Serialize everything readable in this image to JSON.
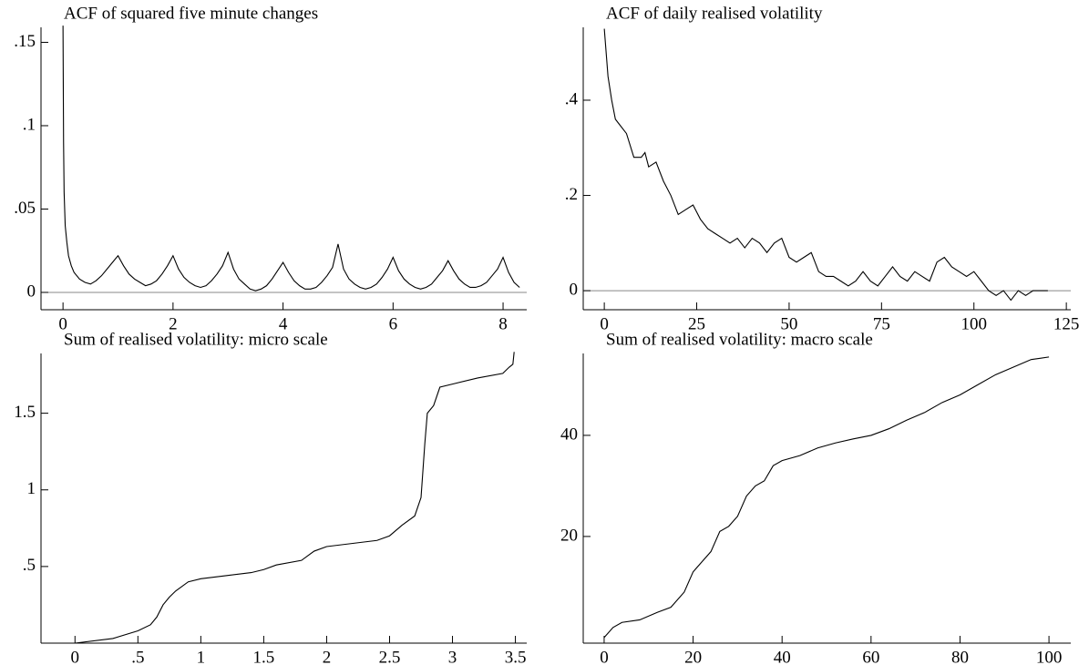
{
  "chart_data": [
    {
      "type": "line",
      "title": "ACF of squared five minute changes",
      "color": "#000000",
      "zero_line": true,
      "x": [
        0,
        0.01,
        0.02,
        0.04,
        0.07,
        0.1,
        0.15,
        0.2,
        0.3,
        0.4,
        0.5,
        0.6,
        0.7,
        0.8,
        0.9,
        1.0,
        1.1,
        1.2,
        1.3,
        1.4,
        1.5,
        1.6,
        1.7,
        1.8,
        1.9,
        2.0,
        2.1,
        2.2,
        2.3,
        2.4,
        2.5,
        2.6,
        2.7,
        2.8,
        2.9,
        3.0,
        3.1,
        3.2,
        3.3,
        3.4,
        3.5,
        3.6,
        3.7,
        3.8,
        3.9,
        4.0,
        4.1,
        4.2,
        4.3,
        4.4,
        4.5,
        4.6,
        4.7,
        4.8,
        4.9,
        5.0,
        5.1,
        5.2,
        5.3,
        5.4,
        5.5,
        5.6,
        5.7,
        5.8,
        5.9,
        6.0,
        6.1,
        6.2,
        6.3,
        6.4,
        6.5,
        6.6,
        6.7,
        6.8,
        6.9,
        7.0,
        7.1,
        7.2,
        7.3,
        7.4,
        7.5,
        7.6,
        7.7,
        7.8,
        7.9,
        8.0,
        8.1,
        8.2,
        8.3
      ],
      "values": [
        0.16,
        0.09,
        0.06,
        0.04,
        0.03,
        0.022,
        0.016,
        0.012,
        0.008,
        0.006,
        0.005,
        0.007,
        0.01,
        0.014,
        0.018,
        0.022,
        0.016,
        0.011,
        0.008,
        0.006,
        0.004,
        0.005,
        0.007,
        0.011,
        0.016,
        0.022,
        0.014,
        0.009,
        0.006,
        0.004,
        0.003,
        0.004,
        0.007,
        0.011,
        0.016,
        0.024,
        0.014,
        0.008,
        0.005,
        0.002,
        0.001,
        0.002,
        0.004,
        0.008,
        0.013,
        0.018,
        0.012,
        0.007,
        0.004,
        0.002,
        0.002,
        0.003,
        0.006,
        0.01,
        0.015,
        0.029,
        0.014,
        0.008,
        0.005,
        0.003,
        0.002,
        0.003,
        0.005,
        0.009,
        0.014,
        0.021,
        0.013,
        0.008,
        0.005,
        0.003,
        0.002,
        0.003,
        0.005,
        0.009,
        0.013,
        0.019,
        0.013,
        0.008,
        0.005,
        0.003,
        0.003,
        0.004,
        0.006,
        0.01,
        0.014,
        0.021,
        0.012,
        0.006,
        0.003
      ],
      "xlim": [
        -0.4,
        8.43
      ],
      "ylim": [
        -0.0104,
        0.159
      ],
      "xticks": [
        0,
        2,
        4,
        6,
        8
      ],
      "yticks": [
        0,
        {
          "value": 0.05,
          "label": ".05"
        },
        {
          "value": 0.1,
          "label": ".1"
        },
        {
          "value": 0.15,
          "label": ".15"
        }
      ]
    },
    {
      "type": "line",
      "title": "ACF of daily realised volatility",
      "color": "#000000",
      "zero_line": true,
      "x": [
        0,
        1,
        2,
        3,
        4,
        6,
        8,
        10,
        11,
        12,
        14,
        16,
        18,
        20,
        22,
        24,
        26,
        28,
        30,
        32,
        34,
        36,
        38,
        40,
        42,
        44,
        46,
        48,
        50,
        52,
        54,
        56,
        58,
        60,
        62,
        64,
        66,
        68,
        70,
        72,
        74,
        76,
        78,
        80,
        82,
        84,
        86,
        88,
        90,
        92,
        94,
        96,
        98,
        100,
        102,
        104,
        106,
        108,
        110,
        112,
        114,
        116,
        118,
        120
      ],
      "values": [
        0.55,
        0.45,
        0.4,
        0.36,
        0.35,
        0.33,
        0.28,
        0.28,
        0.29,
        0.26,
        0.27,
        0.23,
        0.2,
        0.16,
        0.17,
        0.18,
        0.15,
        0.13,
        0.12,
        0.11,
        0.1,
        0.11,
        0.09,
        0.11,
        0.1,
        0.08,
        0.1,
        0.11,
        0.07,
        0.06,
        0.07,
        0.08,
        0.04,
        0.03,
        0.03,
        0.02,
        0.01,
        0.02,
        0.04,
        0.02,
        0.01,
        0.03,
        0.05,
        0.03,
        0.02,
        0.04,
        0.03,
        0.02,
        0.06,
        0.07,
        0.05,
        0.04,
        0.03,
        0.04,
        0.02,
        0.0,
        -0.01,
        0.0,
        -0.02,
        0.0,
        -0.01,
        0.0,
        0.0,
        0.0
      ],
      "xlim": [
        -5.7,
        126.2
      ],
      "ylim": [
        -0.04,
        0.553
      ],
      "xticks": [
        0,
        25,
        50,
        75,
        100,
        125
      ],
      "yticks": [
        0,
        {
          "value": 0.2,
          "label": ".2"
        },
        {
          "value": 0.4,
          "label": ".4"
        }
      ]
    },
    {
      "type": "line",
      "title": "Sum of realised volatility: micro scale",
      "color": "#000000",
      "zero_line": false,
      "x": [
        0,
        0.3,
        0.5,
        0.6,
        0.65,
        0.7,
        0.75,
        0.8,
        0.9,
        1.0,
        1.2,
        1.4,
        1.5,
        1.6,
        1.8,
        1.9,
        2.0,
        2.2,
        2.4,
        2.5,
        2.6,
        2.7,
        2.75,
        2.78,
        2.8,
        2.85,
        2.9,
        3.0,
        3.2,
        3.4,
        3.45,
        3.48,
        3.49
      ],
      "values": [
        0,
        0.03,
        0.08,
        0.12,
        0.17,
        0.25,
        0.3,
        0.34,
        0.4,
        0.42,
        0.44,
        0.46,
        0.48,
        0.51,
        0.54,
        0.6,
        0.63,
        0.65,
        0.67,
        0.7,
        0.77,
        0.83,
        0.95,
        1.3,
        1.5,
        1.55,
        1.67,
        1.69,
        1.73,
        1.76,
        1.8,
        1.82,
        1.9
      ],
      "xlim": [
        -0.27,
        3.59
      ],
      "ylim": [
        0,
        1.89
      ],
      "xticks": [
        0,
        {
          "value": 0.5,
          "label": ".5"
        },
        1,
        1.5,
        2,
        2.5,
        3,
        3.5
      ],
      "yticks": [
        {
          "value": 0.5,
          "label": ".5"
        },
        1,
        1.5
      ]
    },
    {
      "type": "line",
      "title": "Sum of realised volatility: macro scale",
      "color": "#000000",
      "zero_line": false,
      "x": [
        0,
        2,
        4,
        8,
        12,
        15,
        18,
        20,
        22,
        24,
        26,
        28,
        30,
        32,
        34,
        36,
        38,
        40,
        44,
        48,
        52,
        56,
        60,
        64,
        68,
        72,
        76,
        80,
        84,
        88,
        92,
        96,
        100
      ],
      "values": [
        0,
        2,
        3,
        3.5,
        5,
        6,
        9,
        13,
        15,
        17,
        21,
        22,
        24,
        28,
        30,
        31,
        34,
        35,
        36,
        37.5,
        38.5,
        39.3,
        40,
        41.3,
        43,
        44.5,
        46.5,
        48,
        50,
        52,
        53.5,
        55,
        55.5
      ],
      "xlim": [
        -4.7,
        104.9
      ],
      "ylim": [
        -1.1,
        56.2
      ],
      "xticks": [
        0,
        20,
        40,
        60,
        80,
        100
      ],
      "yticks": [
        20,
        40
      ]
    }
  ]
}
